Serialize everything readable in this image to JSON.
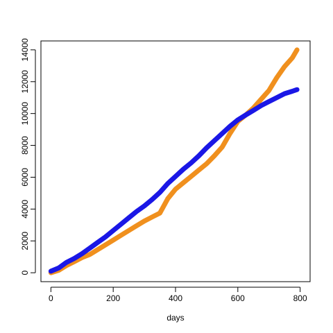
{
  "chart_data": {
    "type": "line",
    "title": "",
    "xlabel": "days",
    "ylabel": "",
    "xlim": [
      0,
      800
    ],
    "ylim": [
      0,
      14000
    ],
    "xticks": [
      0,
      200,
      400,
      600,
      800
    ],
    "yticks": [
      0,
      2000,
      4000,
      6000,
      8000,
      10000,
      12000,
      14000
    ],
    "grid": false,
    "legend": "none",
    "series": [
      {
        "color": "#f0901e",
        "x": [
          0,
          25,
          50,
          75,
          100,
          125,
          150,
          175,
          200,
          225,
          250,
          275,
          300,
          325,
          350,
          375,
          400,
          425,
          450,
          475,
          500,
          525,
          550,
          575,
          600,
          625,
          650,
          675,
          700,
          725,
          750,
          775,
          790
        ],
        "values": [
          0,
          150,
          450,
          700,
          950,
          1150,
          1450,
          1750,
          2050,
          2350,
          2650,
          2950,
          3250,
          3500,
          3750,
          4650,
          5250,
          5650,
          6050,
          6450,
          6850,
          7350,
          7900,
          8750,
          9500,
          9900,
          10350,
          10900,
          11450,
          12250,
          12950,
          13500,
          14000
        ]
      },
      {
        "color": "#1a17e6",
        "x": [
          0,
          25,
          50,
          75,
          100,
          125,
          150,
          175,
          200,
          225,
          250,
          275,
          300,
          325,
          350,
          375,
          400,
          425,
          450,
          475,
          500,
          525,
          550,
          575,
          600,
          625,
          650,
          675,
          700,
          725,
          750,
          775,
          790
        ],
        "values": [
          100,
          300,
          650,
          900,
          1200,
          1550,
          1900,
          2250,
          2650,
          3050,
          3450,
          3850,
          4200,
          4600,
          5050,
          5600,
          6050,
          6500,
          6900,
          7350,
          7850,
          8300,
          8750,
          9200,
          9600,
          9900,
          10200,
          10500,
          10750,
          11000,
          11250,
          11400,
          11500
        ]
      }
    ]
  }
}
